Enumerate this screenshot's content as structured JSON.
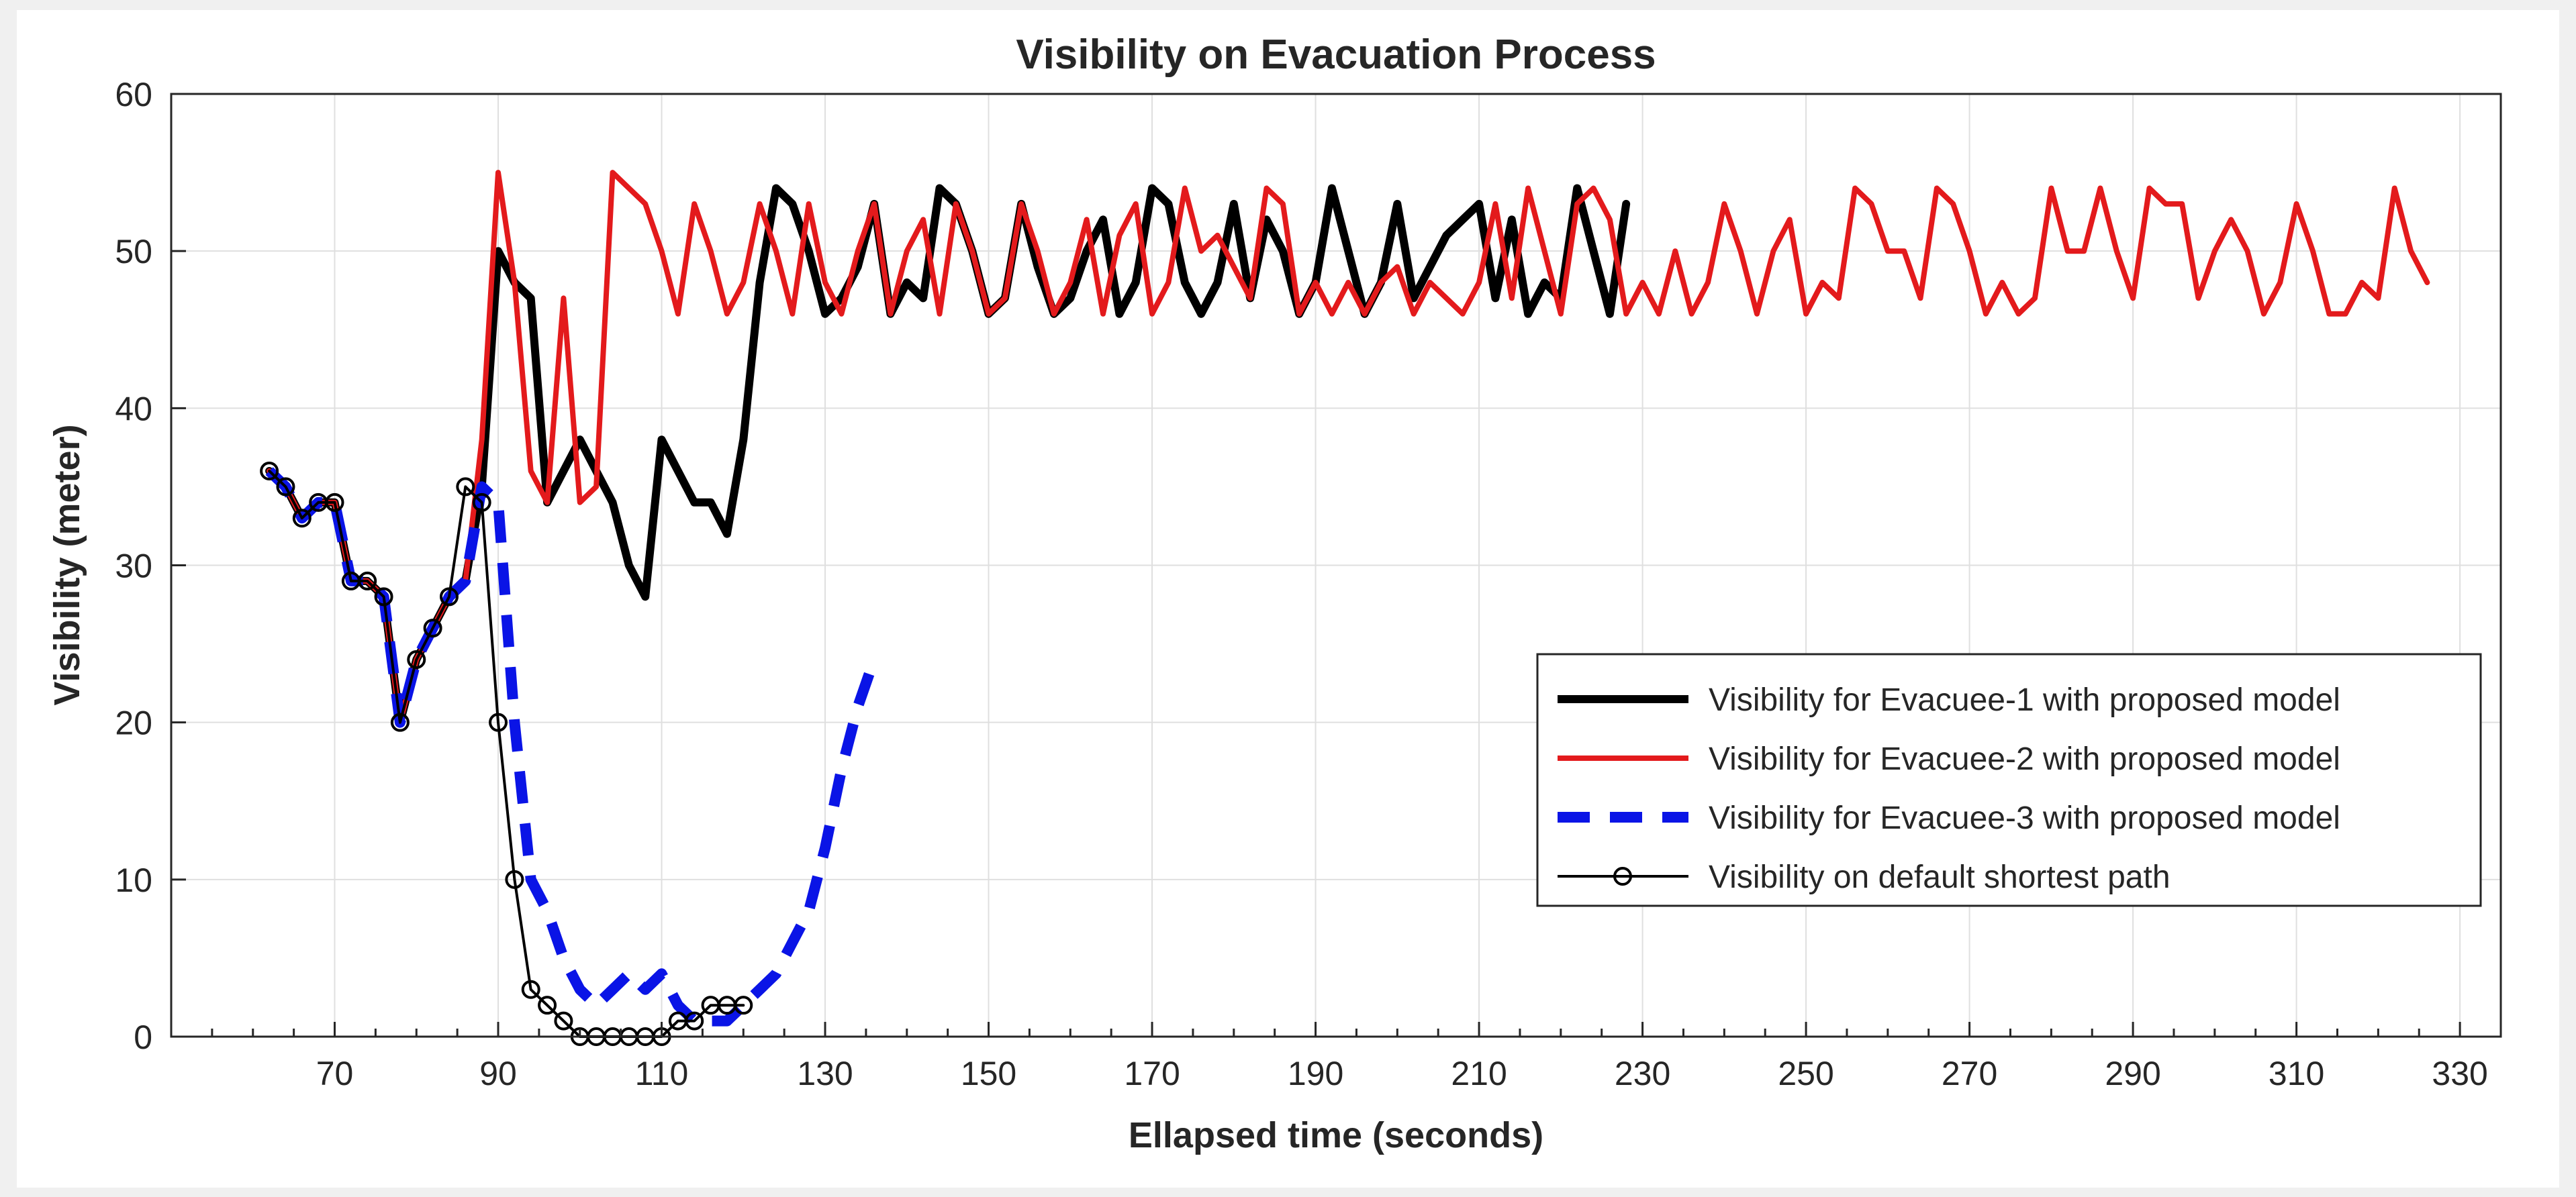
{
  "chart_data": {
    "type": "line",
    "title": "Visibility on Evacuation Process",
    "xlabel": "Ellapsed time (seconds)",
    "ylabel": "Visibility (meter)",
    "xlim": [
      50,
      335
    ],
    "ylim": [
      0,
      60
    ],
    "xticks": [
      70,
      90,
      110,
      130,
      150,
      170,
      190,
      210,
      230,
      250,
      270,
      290,
      310,
      330
    ],
    "yticks": [
      0,
      10,
      20,
      30,
      40,
      50,
      60
    ],
    "grid": true,
    "legend_position": "bottom-right",
    "series": [
      {
        "name": "Visibility for Evacuee-1 with proposed model",
        "color": "#000000",
        "style": "solid-thick",
        "x": [
          62,
          64,
          66,
          68,
          70,
          72,
          74,
          76,
          78,
          80,
          82,
          84,
          86,
          88,
          90,
          92,
          94,
          96,
          98,
          100,
          102,
          104,
          106,
          108,
          110,
          112,
          114,
          116,
          118,
          120,
          122,
          124,
          126,
          128,
          130,
          132,
          134,
          136,
          138,
          140,
          142,
          144,
          146,
          148,
          150,
          152,
          154,
          156,
          158,
          160,
          162,
          164,
          166,
          168,
          170,
          172,
          174,
          176,
          178,
          180,
          182,
          184,
          186,
          188,
          190,
          192,
          194,
          196,
          198,
          200,
          202,
          204,
          206,
          208,
          210,
          212,
          214,
          216,
          218,
          220,
          222,
          224,
          226,
          228
        ],
        "y": [
          36,
          35,
          33,
          34,
          34,
          29,
          29,
          28,
          20,
          24,
          26,
          28,
          29,
          35,
          50,
          48,
          47,
          34,
          36,
          38,
          36,
          34,
          30,
          28,
          38,
          36,
          34,
          34,
          32,
          38,
          48,
          54,
          53,
          50,
          46,
          47,
          49,
          53,
          46,
          48,
          47,
          54,
          53,
          50,
          46,
          47,
          53,
          49,
          46,
          47,
          50,
          52,
          46,
          48,
          54,
          53,
          48,
          46,
          48,
          53,
          47,
          52,
          50,
          46,
          48,
          54,
          50,
          46,
          48,
          53,
          47,
          49,
          51,
          52,
          53,
          47,
          52,
          46,
          48,
          47,
          54,
          50,
          46,
          53
        ]
      },
      {
        "name": "Visibility for Evacuee-2 with proposed model",
        "color": "#e31a1c",
        "style": "solid",
        "x": [
          62,
          64,
          66,
          68,
          70,
          72,
          74,
          76,
          78,
          80,
          82,
          84,
          86,
          88,
          90,
          92,
          94,
          96,
          98,
          100,
          102,
          104,
          106,
          108,
          110,
          112,
          114,
          116,
          118,
          120,
          122,
          124,
          126,
          128,
          130,
          132,
          134,
          136,
          138,
          140,
          142,
          144,
          146,
          148,
          150,
          152,
          154,
          156,
          158,
          160,
          162,
          164,
          166,
          168,
          170,
          172,
          174,
          176,
          178,
          180,
          182,
          184,
          186,
          188,
          190,
          192,
          194,
          196,
          198,
          200,
          202,
          204,
          206,
          208,
          210,
          212,
          214,
          216,
          218,
          220,
          222,
          224,
          226,
          228,
          230,
          232,
          234,
          236,
          238,
          240,
          242,
          244,
          246,
          248,
          250,
          252,
          254,
          256,
          258,
          260,
          262,
          264,
          266,
          268,
          270,
          272,
          274,
          276,
          278,
          280,
          282,
          284,
          286,
          288,
          290,
          292,
          294,
          296,
          298,
          300,
          302,
          304,
          306,
          308,
          310,
          312,
          314,
          316,
          318,
          320,
          322,
          324,
          326
        ],
        "y": [
          36,
          35,
          33,
          34,
          34,
          29,
          29,
          28,
          20,
          24,
          26,
          28,
          29,
          38,
          55,
          48,
          36,
          34,
          47,
          34,
          35,
          55,
          54,
          53,
          50,
          46,
          53,
          50,
          46,
          48,
          53,
          50,
          46,
          53,
          48,
          46,
          50,
          53,
          46,
          50,
          52,
          46,
          53,
          50,
          46,
          47,
          53,
          50,
          46,
          48,
          52,
          46,
          51,
          53,
          46,
          48,
          54,
          50,
          51,
          49,
          47,
          54,
          53,
          46,
          48,
          46,
          48,
          46,
          48,
          49,
          46,
          48,
          47,
          46,
          48,
          53,
          47,
          54,
          50,
          46,
          53,
          54,
          52,
          46,
          48,
          46,
          50,
          46,
          48,
          53,
          50,
          46,
          50,
          52,
          46,
          48,
          47,
          54,
          53,
          50,
          50,
          47,
          54,
          53,
          50,
          46,
          48,
          46,
          47,
          54,
          50,
          50,
          54,
          50,
          47,
          54,
          53,
          53,
          47,
          50,
          52,
          50,
          46,
          48,
          53,
          50,
          46,
          46,
          48,
          47,
          54,
          50,
          48
        ]
      },
      {
        "name": "Visibility for Evacuee-3 with proposed model",
        "color": "#0a14e6",
        "style": "dashed-thick",
        "x": [
          62,
          64,
          66,
          68,
          70,
          72,
          74,
          76,
          78,
          80,
          82,
          84,
          86,
          88,
          90,
          92,
          94,
          96,
          98,
          100,
          102,
          104,
          106,
          108,
          110,
          112,
          114,
          116,
          118,
          120,
          122,
          124,
          126,
          128,
          130,
          132,
          134,
          136
        ],
        "y": [
          36,
          35,
          33,
          34,
          34,
          29,
          29,
          28,
          20,
          24,
          26,
          28,
          29,
          35,
          34,
          20,
          10,
          8,
          5,
          3,
          2,
          3,
          4,
          3,
          4,
          2,
          1,
          1,
          1,
          2,
          3,
          4,
          6,
          8,
          12,
          17,
          21,
          24
        ]
      },
      {
        "name": "Visibility on default shortest path",
        "color": "#000000",
        "style": "solid-thin-circle-markers",
        "x": [
          62,
          64,
          66,
          68,
          70,
          72,
          74,
          76,
          78,
          80,
          82,
          84,
          86,
          88,
          90,
          92,
          94,
          96,
          98,
          100,
          102,
          104,
          106,
          108,
          110,
          112,
          114,
          116,
          118,
          120
        ],
        "y": [
          36,
          35,
          33,
          34,
          34,
          29,
          29,
          28,
          20,
          24,
          26,
          28,
          35,
          34,
          20,
          10,
          3,
          2,
          1,
          0,
          0,
          0,
          0,
          0,
          0,
          1,
          1,
          2,
          2,
          2
        ]
      }
    ]
  }
}
